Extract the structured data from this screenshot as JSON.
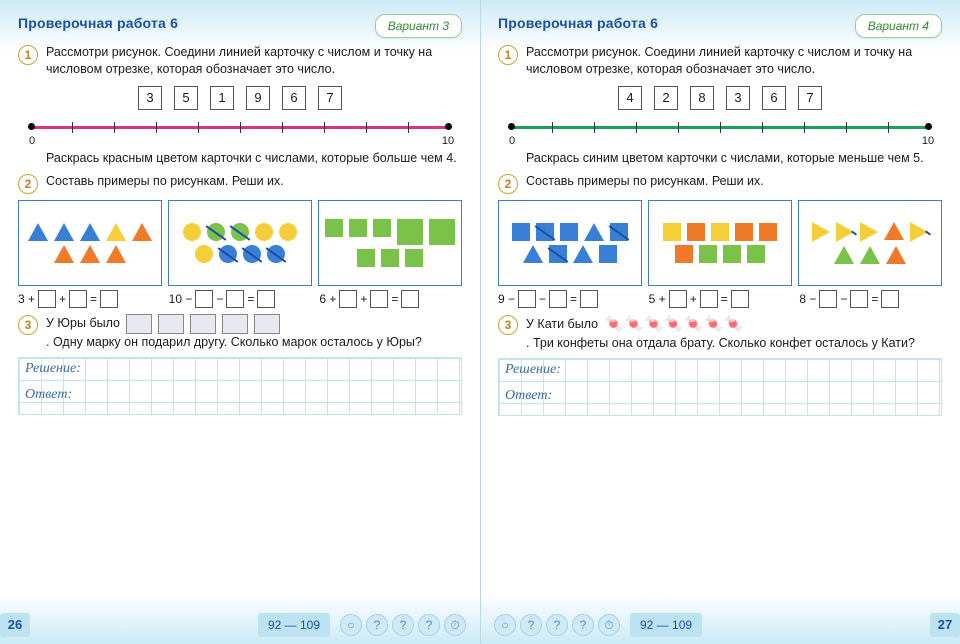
{
  "left": {
    "title": "Проверочная работа 6",
    "variant": "Вариант 3",
    "t1": {
      "num": "1",
      "text": "Рассмотри рисунок. Соедини линией карточку с числом и точку на числовом отрезке, ко­торая обозначает это число.",
      "cards": [
        "3",
        "5",
        "1",
        "9",
        "6",
        "7"
      ],
      "line_color": "#d63384",
      "axis_start": "0",
      "axis_end": "10",
      "sub": "Раскрась красным цветом карточки с числа­ми, которые больше чем 4."
    },
    "t2": {
      "num": "2",
      "text": "Составь примеры по рисункам. Реши их.",
      "eq1_start": "3 +",
      "eq2_start": "10 −",
      "eq3_start": "6 +",
      "eq_mid_plus": "+",
      "eq_mid_minus": "−",
      "eq_eq": "="
    },
    "t3": {
      "num": "3",
      "pre": "У Юры было",
      "post": ". Одну марку он подарил другу. Сколько ма­рок осталось у Юры?",
      "sol": "Решение:",
      "ans": "Ответ:"
    },
    "page": "26",
    "ref": "92 — 109"
  },
  "right": {
    "title": "Проверочная работа 6",
    "variant": "Вариант 4",
    "t1": {
      "num": "1",
      "text": "Рассмотри рисунок. Соедини линией карточку с числом и точку на числовом отрезке, ко­торая обозначает это число.",
      "cards": [
        "4",
        "2",
        "8",
        "3",
        "6",
        "7"
      ],
      "line_color": "#1fa05a",
      "axis_start": "0",
      "axis_end": "10",
      "sub": "Раскрась синим цветом карточки с числами, которые меньше чем 5."
    },
    "t2": {
      "num": "2",
      "text": "Составь примеры по рисункам. Реши их.",
      "eq1_start": "9 −",
      "eq2_start": "5 +",
      "eq3_start": "8 −",
      "eq_mid_plus": "+",
      "eq_mid_minus": "−",
      "eq_eq": "="
    },
    "t3": {
      "num": "3",
      "pre": "У Кати было",
      "post": ". Три конфеты она отдала брату. Сколько конфет осталось у Кати?",
      "sol": "Решение:",
      "ans": "Ответ:",
      "candy_glyph": "🍬",
      "candy_color": "#e85a7a",
      "candy_count": 7
    },
    "page": "27",
    "ref": "92 — 109"
  },
  "icons": {
    "q": "?",
    "clock": "⏱"
  }
}
